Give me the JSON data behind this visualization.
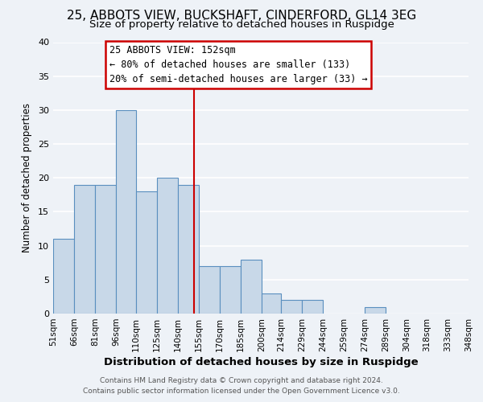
{
  "title1": "25, ABBOTS VIEW, BUCKSHAFT, CINDERFORD, GL14 3EG",
  "title2": "Size of property relative to detached houses in Ruspidge",
  "xlabel": "Distribution of detached houses by size in Ruspidge",
  "ylabel": "Number of detached properties",
  "bar_left_edges": [
    51,
    66,
    81,
    96,
    110,
    125,
    140,
    155,
    170,
    185,
    200,
    214,
    229,
    244,
    259,
    274,
    289,
    304,
    318,
    333
  ],
  "bar_widths": [
    15,
    15,
    15,
    14,
    15,
    15,
    15,
    15,
    15,
    15,
    14,
    15,
    15,
    15,
    15,
    15,
    15,
    14,
    15,
    15
  ],
  "bar_heights": [
    11,
    19,
    19,
    30,
    18,
    20,
    19,
    7,
    7,
    8,
    3,
    2,
    2,
    0,
    0,
    1,
    0,
    0,
    0,
    0
  ],
  "bar_color": "#c8d8e8",
  "bar_edgecolor": "#5a8fbf",
  "vline_x": 152,
  "vline_color": "#cc0000",
  "annotation_title": "25 ABBOTS VIEW: 152sqm",
  "annotation_line1": "← 80% of detached houses are smaller (133)",
  "annotation_line2": "20% of semi-detached houses are larger (33) →",
  "annotation_box_color": "#ffffff",
  "annotation_box_edgecolor": "#cc0000",
  "xlim": [
    51,
    348
  ],
  "ylim": [
    0,
    40
  ],
  "yticks": [
    0,
    5,
    10,
    15,
    20,
    25,
    30,
    35,
    40
  ],
  "xtick_labels": [
    "51sqm",
    "66sqm",
    "81sqm",
    "96sqm",
    "110sqm",
    "125sqm",
    "140sqm",
    "155sqm",
    "170sqm",
    "185sqm",
    "200sqm",
    "214sqm",
    "229sqm",
    "244sqm",
    "259sqm",
    "274sqm",
    "289sqm",
    "304sqm",
    "318sqm",
    "333sqm",
    "348sqm"
  ],
  "xtick_positions": [
    51,
    66,
    81,
    96,
    110,
    125,
    140,
    155,
    170,
    185,
    200,
    214,
    229,
    244,
    259,
    274,
    289,
    304,
    318,
    333,
    348
  ],
  "footer1": "Contains HM Land Registry data © Crown copyright and database right 2024.",
  "footer2": "Contains public sector information licensed under the Open Government Licence v3.0.",
  "bg_color": "#eef2f7",
  "grid_color": "#ffffff",
  "title1_fontsize": 11,
  "title2_fontsize": 9.5
}
